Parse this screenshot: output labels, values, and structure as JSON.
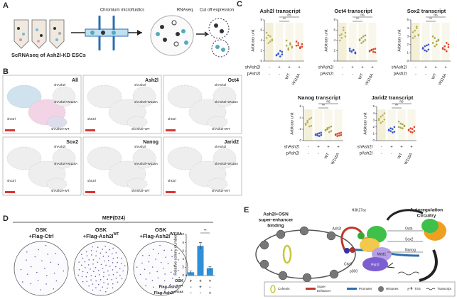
{
  "panels": {
    "A": {
      "label": "A",
      "steps": [
        "Chromium microfluidics",
        "RNAseq",
        "Cut off expression"
      ],
      "caption": "ScRNAseq of Ash2l-KD ESCs"
    },
    "B": {
      "label": "B",
      "maps": [
        "All",
        "Ash2l",
        "Oct4",
        "Sox2",
        "Nanog",
        "Jarid2"
      ],
      "clusters": [
        "shAsh2l",
        "shAsh2l+W118A",
        "shCtrl",
        "shAsh2l+WT"
      ]
    },
    "C": {
      "label": "C",
      "row_labels": [
        "shAsh2l",
        "pAsh2l"
      ],
      "sh_signs": [
        "-",
        "+",
        "+",
        "+"
      ],
      "p_labels": [
        "-",
        "-",
        "WT",
        "W118A"
      ],
      "charts": [
        {
          "type": "strip",
          "title": "Ash2l transcript",
          "ylabel": "Arbitrary unit",
          "ylim": [
            0,
            8
          ],
          "yticks": [
            0,
            2,
            4,
            6,
            8
          ],
          "sig": [
            "**",
            "ns"
          ],
          "groups": [
            {
              "color": "#b9b45a",
              "values": [
                4.5,
                5,
                3.8,
                4.2,
                5.5,
                3.5,
                4.8,
                4
              ]
            },
            {
              "color": "#3456d6",
              "values": [
                1.2,
                1.5,
                0.9,
                1.8,
                1.1,
                1.4,
                2,
                1.3
              ]
            },
            {
              "color": "#a8a848",
              "values": [
                3,
                2.5,
                3.5,
                2.8,
                4,
                2.2,
                3.2,
                2.6
              ]
            },
            {
              "color": "#e0412f",
              "values": [
                3,
                3.5,
                2.5,
                2.8,
                3.8,
                3.1,
                2.7,
                3.3
              ]
            }
          ]
        },
        {
          "type": "strip",
          "title": "Oct4 transcript",
          "ylabel": "Arbitrary unit",
          "ylim": [
            0,
            8
          ],
          "yticks": [
            0,
            2,
            4,
            6,
            8
          ],
          "sig": [
            "**",
            "ns"
          ],
          "groups": [
            {
              "color": "#b9b45a",
              "values": [
                5,
                4.5,
                6,
                5.5,
                4,
                5.2,
                6.5,
                4.8
              ]
            },
            {
              "color": "#3456d6",
              "values": [
                2,
                1.8,
                2.2,
                1.5,
                2.4,
                1.9,
                2.1,
                1.7
              ]
            },
            {
              "color": "#a8a848",
              "values": [
                4,
                4.5,
                3.8,
                5,
                4.2,
                3.5,
                4.8,
                4.1
              ]
            },
            {
              "color": "#e0412f",
              "values": [
                2,
                2.2,
                1.8,
                2.4,
                1.9,
                2.1,
                2.3,
                1.7
              ]
            }
          ]
        },
        {
          "type": "strip",
          "title": "Sox2 transcript",
          "ylabel": "Arbitrary unit",
          "ylim": [
            0,
            5
          ],
          "yticks": [
            0,
            1,
            2,
            3,
            4,
            5
          ],
          "sig": [
            "**",
            "ns"
          ],
          "groups": [
            {
              "color": "#b9b45a",
              "values": [
                3.5,
                3,
                4,
                3.2,
                2.8,
                3.7,
                4.2,
                3.1
              ]
            },
            {
              "color": "#3456d6",
              "values": [
                1.5,
                1.8,
                1.2,
                2,
                1.6,
                1.3,
                1.9,
                1.4
              ]
            },
            {
              "color": "#a8a848",
              "values": [
                2.2,
                2.8,
                2,
                2.5,
                3,
                1.8,
                2.4,
                2.6
              ]
            },
            {
              "color": "#e0412f",
              "values": [
                1.5,
                1.8,
                1.2,
                2,
                1.6,
                1.4,
                2.2,
                1.7
              ]
            }
          ]
        },
        {
          "type": "strip",
          "title": "Nanog transcript",
          "ylabel": "Arbitrary unit",
          "ylim": [
            0,
            6
          ],
          "yticks": [
            0,
            2,
            4,
            6
          ],
          "sig": [
            "**",
            "ns"
          ],
          "groups": [
            {
              "color": "#b9b45a",
              "values": [
                3,
                3.5,
                2.5,
                4,
                2.8,
                3.2,
                3.8,
                2.6
              ]
            },
            {
              "color": "#3456d6",
              "values": [
                1,
                1.2,
                0.8,
                1.4,
                1.1,
                0.9,
                1.3,
                1
              ]
            },
            {
              "color": "#a8a848",
              "values": [
                1.8,
                2.2,
                1.5,
                2.5,
                1.9,
                2,
                2.3,
                1.7
              ]
            },
            {
              "color": "#e0412f",
              "values": [
                1,
                1.2,
                0.9,
                1.4,
                1.1,
                0.8,
                1.3,
                1
              ]
            }
          ]
        },
        {
          "type": "strip",
          "title": "Jarid2 transcript",
          "ylabel": "Arbitrary unit",
          "ylim": [
            0,
            5
          ],
          "yticks": [
            0,
            1,
            2,
            3,
            4,
            5
          ],
          "sig": [
            "**",
            "ns"
          ],
          "groups": [
            {
              "color": "#b9b45a",
              "values": [
                3,
                3.5,
                2.8,
                4,
                3.2,
                2.6,
                3.7,
                3.1
              ]
            },
            {
              "color": "#3456d6",
              "values": [
                1.5,
                1.8,
                1.2,
                2,
                1.6,
                1.4,
                1.7,
                1.3
              ]
            },
            {
              "color": "#a8a848",
              "values": [
                2,
                2.5,
                1.8,
                2.2,
                2.8,
                1.9,
                2.4,
                2.1
              ]
            },
            {
              "color": "#e0412f",
              "values": [
                1.5,
                1.8,
                1.2,
                2,
                1.6,
                1.3,
                1.7,
                1.4
              ]
            }
          ]
        }
      ]
    },
    "D": {
      "label": "D",
      "title": "MEF(D24)",
      "wells": [
        {
          "line1": "OSK",
          "line2": "+Flag-Ctrl"
        },
        {
          "line1": "OSK",
          "line2": "+Flag-Ash2l",
          "sup": "WT"
        },
        {
          "line1": "OSK",
          "line2": "+Flag-Ash2l",
          "sup": "W118A"
        }
      ],
      "chart": {
        "type": "bar",
        "ylabel": "Relative colony number",
        "values": [
          0.8,
          7.2,
          1.8
        ],
        "errors": [
          0.3,
          0.8,
          0.4
        ],
        "ylim": [
          0,
          10
        ],
        "yticks": [
          0,
          2,
          4,
          6,
          8,
          10
        ],
        "color": "#2f8fd8",
        "sig": "**",
        "rows": [
          {
            "name": "OSK",
            "signs": [
              "+",
              "+",
              "+"
            ]
          },
          {
            "name": "Flag-Ash2l",
            "sup": "WT",
            "signs": [
              "-",
              "+",
              "-"
            ]
          },
          {
            "name": "Flag-Ash2l",
            "sup": "W118A",
            "signs": [
              "-",
              "-",
              "+"
            ]
          }
        ]
      }
    },
    "E": {
      "label": "E",
      "binding": [
        "Ash2l+OSN",
        "super-enhancer",
        "binding"
      ],
      "circuit": [
        "Autoregulation",
        "Circuitry"
      ],
      "mark": "H3K27ac",
      "factors": [
        "Ash2l",
        "Oct4",
        "Sox2",
        "Nanog",
        "Med1",
        "Pol II",
        "Chd7",
        "p300"
      ],
      "legend": [
        "Cohesin",
        "Super",
        "Enhancer",
        "Promoter",
        "Histones",
        "TSS",
        "Transcript"
      ]
    }
  }
}
